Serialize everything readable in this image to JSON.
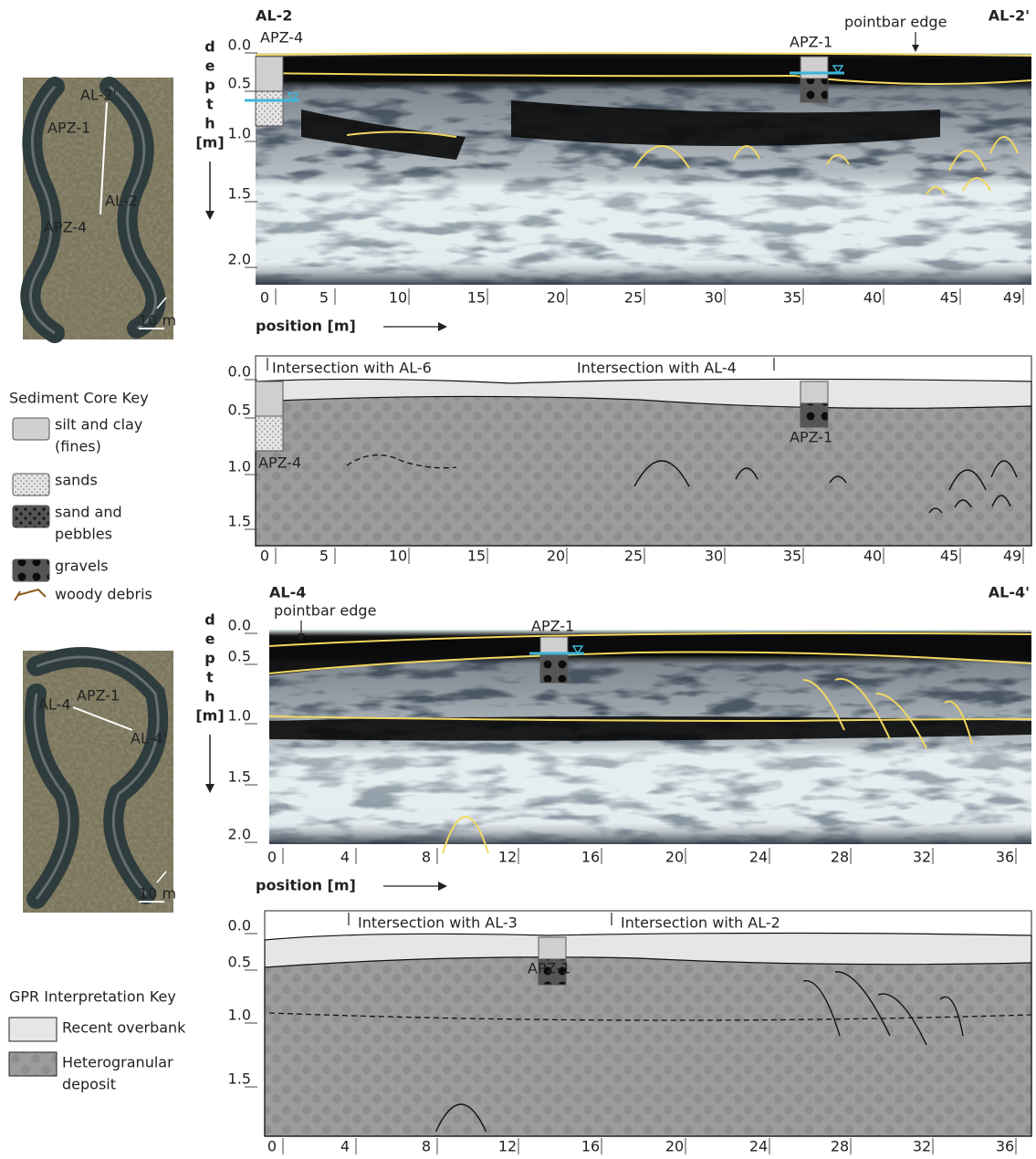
{
  "profile_al2": {
    "left_label": "AL-2",
    "right_label": "AL-2'",
    "annotation": "pointbar edge",
    "core_labels": [
      "APZ-4",
      "APZ-1"
    ],
    "depth_axis": {
      "letters": [
        "d",
        "e",
        "p",
        "t",
        "h"
      ],
      "unit": "[m]",
      "ticks": [
        "0.0",
        "0.5",
        "1.0",
        "1.5",
        "2.0"
      ]
    },
    "position_ticks": [
      "0",
      "5",
      "10",
      "15",
      "20",
      "25",
      "30",
      "35",
      "40",
      "45",
      "49"
    ],
    "position_label": "position [m]"
  },
  "interpretation_al2": {
    "intersections": [
      "Intersection with AL-6",
      "Intersection with AL-4"
    ],
    "core_labels": [
      "APZ-4",
      "APZ-1"
    ],
    "depth_ticks": [
      "0.0",
      "0.5",
      "1.0",
      "1.5"
    ],
    "position_ticks": [
      "0",
      "5",
      "10",
      "15",
      "20",
      "25",
      "30",
      "35",
      "40",
      "45",
      "49"
    ]
  },
  "profile_al4": {
    "left_label": "AL-4",
    "right_label": "AL-4'",
    "annotation": "pointbar edge",
    "core_labels": [
      "APZ-1"
    ],
    "depth_axis": {
      "letters": [
        "d",
        "e",
        "p",
        "t",
        "h"
      ],
      "unit": "[m]",
      "ticks": [
        "0.0",
        "0.5",
        "1.0",
        "1.5",
        "2.0"
      ]
    },
    "position_ticks": [
      "0",
      "4",
      "8",
      "12",
      "16",
      "20",
      "24",
      "28",
      "32",
      "36"
    ],
    "position_label": "position [m]"
  },
  "interpretation_al4": {
    "intersections": [
      "Intersection with AL-3",
      "Intersection with AL-2"
    ],
    "core_labels": [
      "APZ-1"
    ],
    "depth_ticks": [
      "0.0",
      "0.5",
      "1.0",
      "1.5"
    ],
    "position_ticks": [
      "0",
      "4",
      "8",
      "12",
      "16",
      "20",
      "24",
      "28",
      "32",
      "36"
    ]
  },
  "map_al2": {
    "labels": [
      "AL-2'",
      "APZ-1",
      "AL-2",
      "APZ-4"
    ],
    "scale": "10 m"
  },
  "map_al4": {
    "labels": [
      "AL-4",
      "APZ-1",
      "AL-4'"
    ],
    "scale": "10 m"
  },
  "sediment_core_key": {
    "title": "Sediment Core Key",
    "items": [
      [
        "silt and clay",
        "(fines)"
      ],
      [
        "sands"
      ],
      [
        "sand and",
        "pebbles"
      ],
      [
        "gravels"
      ],
      [
        "woody debris"
      ]
    ]
  },
  "gpr_interpretation_key": {
    "title": "GPR Interpretation Key",
    "items": [
      [
        "Recent overbank"
      ],
      [
        "Heterogranular",
        "deposit"
      ]
    ]
  }
}
